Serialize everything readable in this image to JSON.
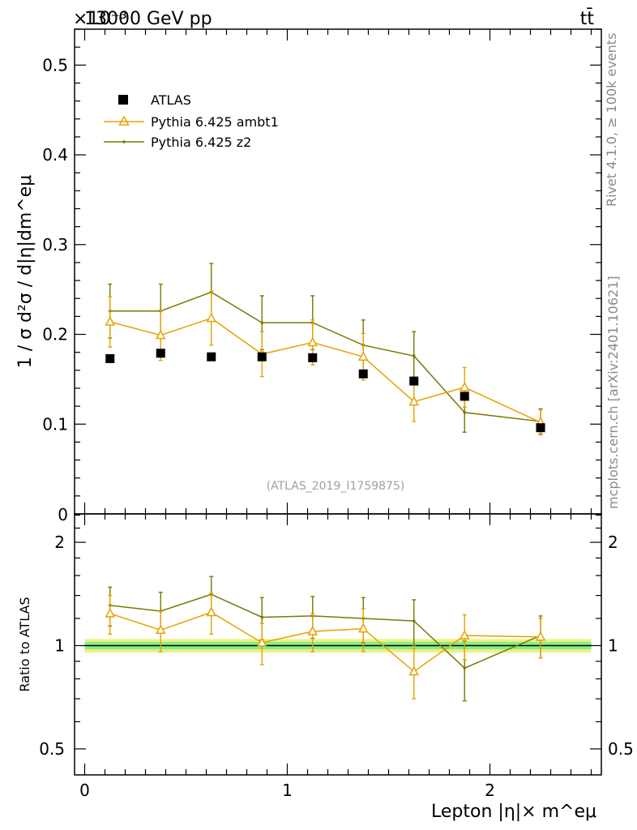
{
  "header": {
    "exponent": "×10⁻³",
    "energy": "13000 GeV pp",
    "process": "tt̄"
  },
  "side_labels": {
    "rivet": "Rivet 4.1.0, ≥ 100k events",
    "mcplots": "mcplots.cern.ch [arXiv:2401.10621]"
  },
  "watermark": "(ATLAS_2019_I1759875)",
  "colors": {
    "data": "#000000",
    "ambt1": "#e8a100",
    "z2": "#7a7a00",
    "band_inner": "#88ee88",
    "band_outer": "#f0f080"
  },
  "chart_data": [
    {
      "type": "line",
      "panel": "main",
      "title": "13000 GeV pp",
      "ylabel": "1 / σ  d²σ / d|η|dm^eμ",
      "xlabel": "",
      "xlim": [
        -0.05,
        2.55
      ],
      "ylim": [
        0.0,
        0.54
      ],
      "y_ticks": [
        0.1,
        0.2,
        0.3,
        0.4,
        0.5
      ],
      "y_tick_labels": [
        "0.1",
        "0.2",
        "0.3",
        "0.4",
        "0.5"
      ],
      "y_zero_label": "0",
      "x": [
        0.125,
        0.375,
        0.625,
        0.875,
        1.125,
        1.375,
        1.625,
        1.875,
        2.25
      ],
      "x_halfwidth": [
        0.125,
        0.125,
        0.125,
        0.125,
        0.125,
        0.125,
        0.125,
        0.125,
        0.25
      ],
      "series": [
        {
          "name": "ATLAS",
          "marker": "square",
          "values": [
            0.173,
            0.179,
            0.175,
            0.175,
            0.174,
            0.156,
            0.148,
            0.131,
            0.096
          ],
          "errors": [
            0.002,
            0.004,
            0.002,
            0.004,
            0.004,
            0.004,
            0.004,
            0.004,
            0.004
          ]
        },
        {
          "name": "Pythia 6.425 ambt1",
          "marker": "triangle",
          "values": [
            0.214,
            0.199,
            0.218,
            0.178,
            0.191,
            0.175,
            0.125,
            0.141,
            0.102
          ],
          "errors": [
            0.028,
            0.028,
            0.03,
            0.025,
            0.025,
            0.026,
            0.022,
            0.022,
            0.014
          ]
        },
        {
          "name": "Pythia 6.425 z2",
          "marker": "dot",
          "values": [
            0.226,
            0.226,
            0.247,
            0.213,
            0.213,
            0.188,
            0.176,
            0.113,
            0.103
          ],
          "errors": [
            0.03,
            0.03,
            0.032,
            0.03,
            0.03,
            0.028,
            0.027,
            0.022,
            0.014
          ]
        }
      ]
    },
    {
      "type": "line",
      "panel": "ratio",
      "ylabel": "Ratio to ATLAS",
      "xlabel": "Lepton |η|× m^eμ",
      "xlim": [
        -0.05,
        2.55
      ],
      "ylim": [
        0.42,
        2.42
      ],
      "y_scale": "log",
      "y_ticks": [
        0.5,
        1,
        2
      ],
      "y_tick_labels": [
        "0.5",
        "1",
        "2"
      ],
      "x_ticks": [
        0,
        1,
        2
      ],
      "x_tick_labels": [
        "0",
        "1",
        "2"
      ],
      "band_inner": 0.025,
      "band_outer": 0.045,
      "x": [
        0.125,
        0.375,
        0.625,
        0.875,
        1.125,
        1.375,
        1.625,
        1.875,
        2.25
      ],
      "series": [
        {
          "name": "Pythia 6.425 ambt1",
          "marker": "triangle",
          "values": [
            1.24,
            1.11,
            1.25,
            1.02,
            1.1,
            1.12,
            0.84,
            1.07,
            1.06
          ],
          "errors": [
            0.16,
            0.15,
            0.17,
            0.14,
            0.14,
            0.16,
            0.14,
            0.16,
            0.14
          ]
        },
        {
          "name": "Pythia 6.425 z2",
          "marker": "dot",
          "values": [
            1.31,
            1.26,
            1.41,
            1.21,
            1.22,
            1.2,
            1.18,
            0.86,
            1.07
          ],
          "errors": [
            0.17,
            0.17,
            0.18,
            0.17,
            0.17,
            0.18,
            0.18,
            0.17,
            0.15
          ]
        }
      ]
    }
  ]
}
